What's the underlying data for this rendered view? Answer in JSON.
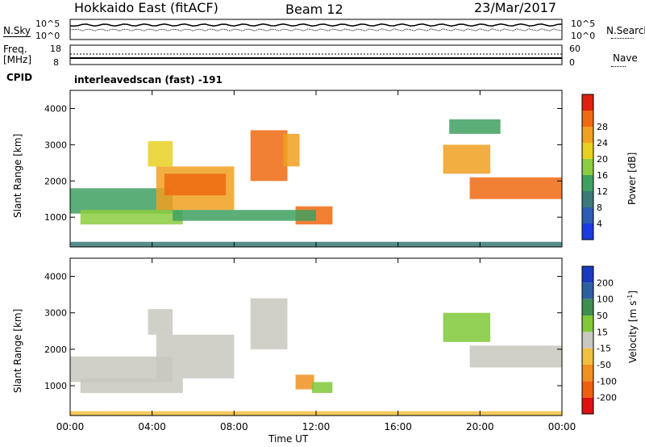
{
  "header": {
    "title": "Hokkaido East (fitACF)",
    "beam": "Beam 12",
    "date": "23/Mar/2017"
  },
  "panels": {
    "nsky_label": "N.Sky",
    "nsearch_label": "N.Search",
    "freq_label": "Freq.",
    "freq_unit": "[MHz]",
    "nave_label": "Nave",
    "cpid_label": "CPID",
    "cpid_value": "interleavedscan (fast) -191",
    "noise_ticks_left": [
      "10^5",
      "10^0"
    ],
    "noise_ticks_right": [
      "10^5",
      "10^0"
    ],
    "freq_ticks_left": [
      "18",
      "8"
    ],
    "nave_ticks_right": [
      "60",
      "0"
    ]
  },
  "chart_data": [
    {
      "type": "heatmap",
      "name": "power",
      "xlabel": "Time UT",
      "ylabel": "Slant Range [km]",
      "xlim": [
        0,
        24
      ],
      "ylim": [
        180,
        4500
      ],
      "x_ticks": [
        "00:00",
        "04:00",
        "08:00",
        "12:00",
        "16:00",
        "20:00",
        "00:00"
      ],
      "y_ticks": [
        1000,
        2000,
        3000,
        4000
      ],
      "colorbar": {
        "label": "Power [dB]",
        "ticks": [
          4,
          8,
          12,
          16,
          20,
          24,
          28
        ],
        "colors": [
          "#1a3be0",
          "#2d5db5",
          "#3a7a7a",
          "#3fa060",
          "#8ccc40",
          "#e8d020",
          "#f0a020",
          "#ee6a10",
          "#e02010"
        ],
        "range": [
          0,
          32
        ]
      },
      "regions": [
        {
          "t0": 0.0,
          "t1": 5.0,
          "r0": 1100,
          "r1": 1800,
          "value": 12
        },
        {
          "t0": 0.5,
          "t1": 5.5,
          "r0": 800,
          "r1": 1200,
          "value": 15
        },
        {
          "t0": 4.2,
          "t1": 8.0,
          "r0": 1200,
          "r1": 2400,
          "value": 24
        },
        {
          "t0": 4.6,
          "t1": 7.6,
          "r0": 1600,
          "r1": 2200,
          "value": 28
        },
        {
          "t0": 3.8,
          "t1": 5.0,
          "r0": 2400,
          "r1": 3100,
          "value": 18
        },
        {
          "t0": 8.8,
          "t1": 10.6,
          "r0": 2000,
          "r1": 3400,
          "value": 28
        },
        {
          "t0": 10.4,
          "t1": 11.2,
          "r0": 2400,
          "r1": 3300,
          "value": 22
        },
        {
          "t0": 11.0,
          "t1": 12.8,
          "r0": 800,
          "r1": 1300,
          "value": 26
        },
        {
          "t0": 18.2,
          "t1": 20.5,
          "r0": 2200,
          "r1": 3000,
          "value": 24
        },
        {
          "t0": 19.5,
          "t1": 24.0,
          "r0": 1500,
          "r1": 2100,
          "value": 28
        },
        {
          "t0": 18.5,
          "t1": 21.0,
          "r0": 3300,
          "r1": 3700,
          "value": 14
        },
        {
          "t0": 5.0,
          "t1": 12.0,
          "r0": 900,
          "r1": 1200,
          "value": 12
        },
        {
          "t0": 0.0,
          "t1": 24.0,
          "r0": 180,
          "r1": 320,
          "value": 10
        }
      ]
    },
    {
      "type": "heatmap",
      "name": "velocity",
      "xlabel": "Time UT",
      "ylabel": "Slant Range [km]",
      "xlim": [
        0,
        24
      ],
      "ylim": [
        180,
        4500
      ],
      "x_ticks": [
        "00:00",
        "04:00",
        "08:00",
        "12:00",
        "16:00",
        "20:00",
        "00:00"
      ],
      "y_ticks": [
        1000,
        2000,
        3000,
        4000
      ],
      "colorbar": {
        "label": "Velocity [m s^-1]",
        "ticks": [
          200,
          100,
          50,
          15,
          -15,
          -50,
          -100,
          -200
        ],
        "colors": [
          "#1a3bc0",
          "#2c60a0",
          "#3e8e50",
          "#80c838",
          "#c8c8c0",
          "#f0c040",
          "#f09020",
          "#ee6010",
          "#e01010"
        ]
      },
      "regions": [
        {
          "t0": 0.0,
          "t1": 5.0,
          "r0": 1100,
          "r1": 1800,
          "value": 0
        },
        {
          "t0": 0.5,
          "t1": 5.5,
          "r0": 800,
          "r1": 1200,
          "value": 0
        },
        {
          "t0": 4.2,
          "t1": 8.0,
          "r0": 1200,
          "r1": 2400,
          "value": 0
        },
        {
          "t0": 3.8,
          "t1": 5.0,
          "r0": 2400,
          "r1": 3100,
          "value": 0
        },
        {
          "t0": 8.8,
          "t1": 10.6,
          "r0": 2000,
          "r1": 3400,
          "value": 0
        },
        {
          "t0": 11.0,
          "t1": 11.9,
          "r0": 900,
          "r1": 1300,
          "value": -60
        },
        {
          "t0": 11.8,
          "t1": 12.8,
          "r0": 800,
          "r1": 1100,
          "value": 40
        },
        {
          "t0": 18.2,
          "t1": 20.5,
          "r0": 2200,
          "r1": 3000,
          "value": 30
        },
        {
          "t0": 19.5,
          "t1": 24.0,
          "r0": 1500,
          "r1": 2100,
          "value": 5
        },
        {
          "t0": 0.0,
          "t1": 1.8,
          "r0": 180,
          "r1": 300,
          "value": -50
        },
        {
          "t0": 1.8,
          "t1": 24.0,
          "r0": 180,
          "r1": 300,
          "value": -20
        }
      ]
    }
  ]
}
